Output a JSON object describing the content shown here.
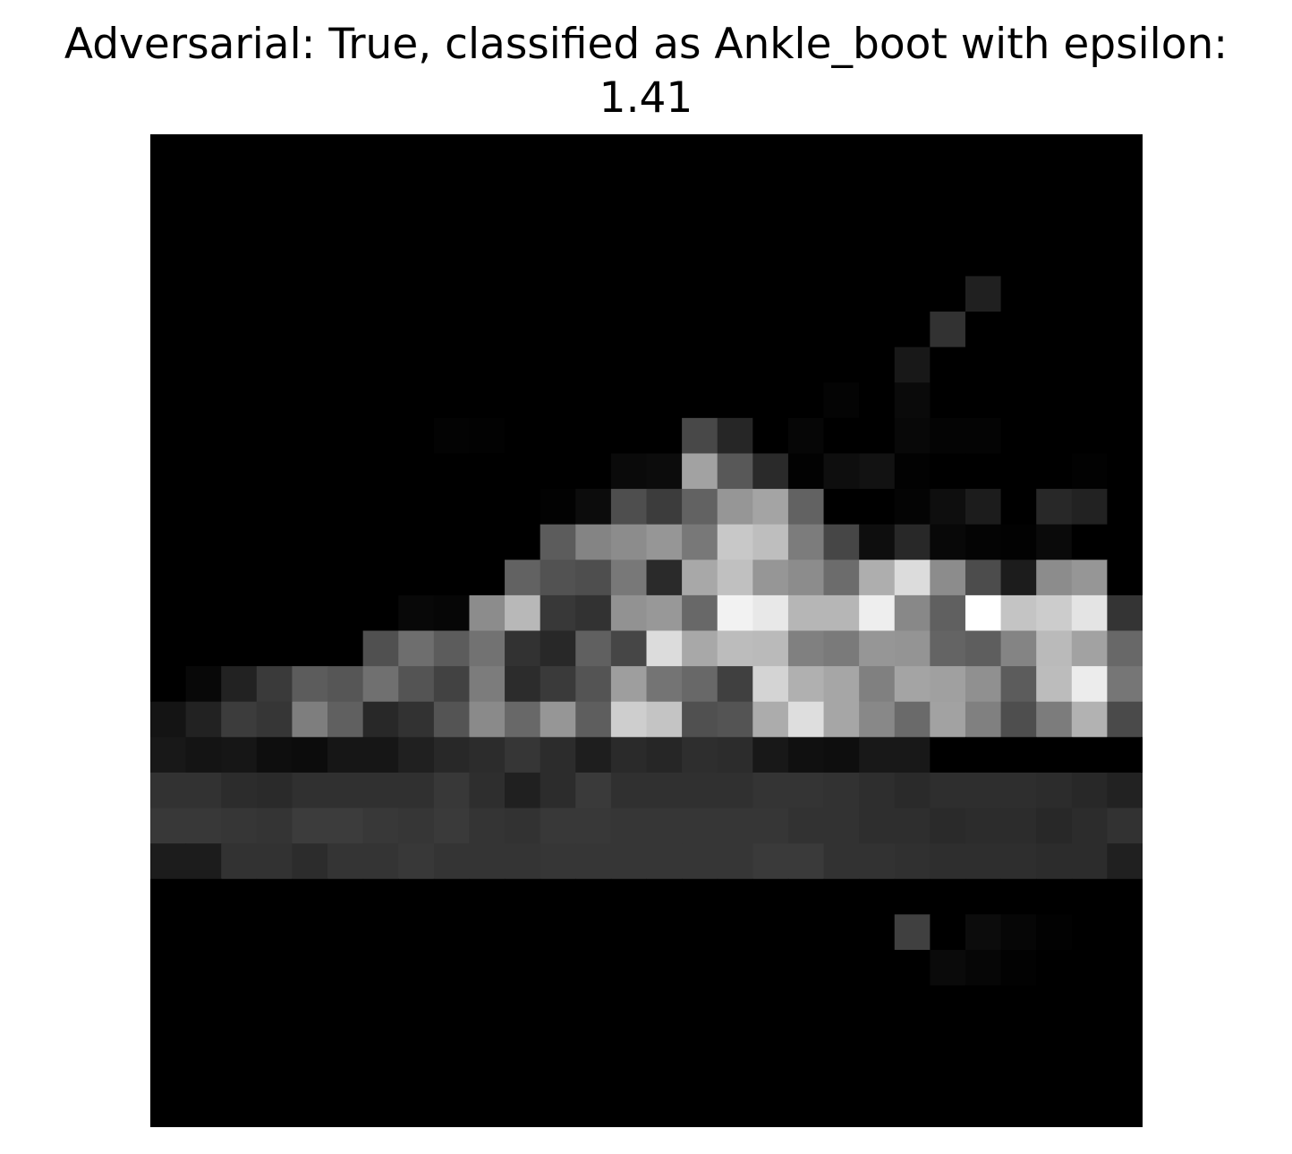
{
  "chart_data": {
    "type": "heatmap",
    "title_line_1": "Adversarial: True, classified as Ankle_boot with epsilon:",
    "title_line_2": "1.41",
    "colormap": "gray",
    "value_range": [
      0,
      255
    ],
    "rows": 28,
    "cols": 28,
    "axes_visible": false,
    "values": [
      [
        0,
        0,
        0,
        0,
        0,
        0,
        0,
        0,
        0,
        0,
        0,
        0,
        0,
        0,
        0,
        0,
        0,
        0,
        0,
        0,
        0,
        0,
        0,
        0,
        0,
        0,
        0,
        0
      ],
      [
        0,
        0,
        0,
        0,
        0,
        0,
        0,
        0,
        0,
        0,
        0,
        0,
        0,
        0,
        0,
        0,
        0,
        0,
        0,
        0,
        0,
        0,
        0,
        0,
        0,
        0,
        0,
        0
      ],
      [
        0,
        0,
        0,
        0,
        0,
        0,
        0,
        0,
        0,
        0,
        0,
        0,
        0,
        0,
        0,
        0,
        0,
        0,
        0,
        0,
        0,
        0,
        0,
        0,
        0,
        0,
        0,
        0
      ],
      [
        0,
        0,
        0,
        0,
        0,
        0,
        0,
        0,
        0,
        0,
        0,
        0,
        0,
        0,
        0,
        0,
        0,
        0,
        0,
        0,
        0,
        0,
        0,
        0,
        0,
        0,
        0,
        0
      ],
      [
        0,
        0,
        0,
        0,
        0,
        0,
        0,
        0,
        0,
        0,
        0,
        0,
        0,
        0,
        0,
        0,
        0,
        0,
        0,
        0,
        0,
        0,
        0,
        32,
        0,
        0,
        0,
        0
      ],
      [
        0,
        0,
        0,
        0,
        0,
        0,
        0,
        0,
        0,
        0,
        0,
        0,
        0,
        0,
        0,
        0,
        0,
        0,
        0,
        0,
        0,
        0,
        50,
        0,
        0,
        0,
        0,
        0
      ],
      [
        0,
        0,
        0,
        0,
        0,
        0,
        0,
        0,
        0,
        0,
        0,
        0,
        0,
        0,
        0,
        0,
        0,
        0,
        0,
        0,
        0,
        24,
        0,
        0,
        0,
        0,
        0,
        0
      ],
      [
        0,
        0,
        0,
        0,
        0,
        0,
        0,
        0,
        0,
        0,
        0,
        0,
        0,
        0,
        0,
        0,
        0,
        0,
        0,
        4,
        0,
        10,
        0,
        0,
        0,
        0,
        0,
        0
      ],
      [
        0,
        0,
        0,
        0,
        0,
        0,
        0,
        0,
        3,
        2,
        0,
        0,
        0,
        0,
        0,
        72,
        38,
        0,
        6,
        0,
        0,
        8,
        4,
        4,
        0,
        0,
        0,
        0
      ],
      [
        0,
        0,
        0,
        0,
        0,
        0,
        0,
        0,
        0,
        0,
        0,
        0,
        0,
        10,
        12,
        162,
        88,
        42,
        2,
        14,
        18,
        2,
        0,
        0,
        0,
        0,
        2,
        0
      ],
      [
        0,
        0,
        0,
        0,
        0,
        0,
        0,
        0,
        0,
        0,
        0,
        2,
        12,
        78,
        60,
        98,
        150,
        164,
        98,
        0,
        0,
        4,
        14,
        28,
        0,
        40,
        34,
        0
      ],
      [
        0,
        0,
        0,
        0,
        0,
        0,
        0,
        0,
        0,
        0,
        0,
        92,
        132,
        140,
        150,
        120,
        200,
        190,
        124,
        70,
        14,
        40,
        8,
        4,
        2,
        10,
        0,
        0
      ],
      [
        0,
        0,
        0,
        0,
        0,
        0,
        0,
        0,
        0,
        0,
        98,
        82,
        78,
        120,
        42,
        168,
        192,
        150,
        140,
        108,
        174,
        220,
        140,
        76,
        28,
        140,
        150,
        0
      ],
      [
        0,
        0,
        0,
        0,
        0,
        0,
        0,
        8,
        6,
        140,
        184,
        56,
        50,
        146,
        152,
        104,
        242,
        232,
        182,
        182,
        238,
        136,
        96,
        255,
        196,
        204,
        228,
        52
      ],
      [
        0,
        0,
        0,
        0,
        0,
        0,
        80,
        110,
        92,
        114,
        50,
        40,
        96,
        70,
        220,
        168,
        188,
        186,
        128,
        122,
        150,
        148,
        100,
        94,
        132,
        186,
        162,
        104
      ],
      [
        0,
        8,
        34,
        58,
        92,
        86,
        112,
        84,
        66,
        124,
        44,
        58,
        84,
        158,
        116,
        104,
        64,
        212,
        176,
        166,
        128,
        164,
        160,
        144,
        92,
        188,
        236,
        118
      ],
      [
        20,
        34,
        60,
        54,
        126,
        96,
        40,
        50,
        84,
        138,
        104,
        150,
        94,
        206,
        196,
        80,
        84,
        172,
        222,
        166,
        136,
        106,
        162,
        128,
        78,
        124,
        178,
        74
      ],
      [
        24,
        20,
        22,
        14,
        12,
        22,
        22,
        32,
        40,
        44,
        54,
        44,
        30,
        42,
        38,
        46,
        44,
        24,
        16,
        14,
        24,
        24,
        0,
        0,
        0,
        0,
        0,
        0
      ],
      [
        50,
        50,
        44,
        42,
        48,
        48,
        48,
        48,
        56,
        46,
        32,
        44,
        58,
        48,
        48,
        48,
        48,
        52,
        52,
        50,
        46,
        42,
        46,
        46,
        46,
        44,
        40,
        34
      ],
      [
        56,
        56,
        54,
        52,
        60,
        60,
        56,
        54,
        58,
        52,
        50,
        56,
        56,
        54,
        54,
        54,
        54,
        54,
        50,
        50,
        46,
        46,
        42,
        44,
        44,
        40,
        44,
        50
      ],
      [
        28,
        28,
        50,
        50,
        44,
        52,
        52,
        56,
        52,
        52,
        52,
        54,
        54,
        54,
        54,
        54,
        54,
        58,
        58,
        50,
        50,
        48,
        46,
        46,
        46,
        44,
        44,
        32
      ],
      [
        0,
        0,
        0,
        0,
        0,
        0,
        0,
        0,
        0,
        0,
        0,
        0,
        0,
        0,
        0,
        0,
        0,
        0,
        0,
        0,
        0,
        0,
        0,
        0,
        0,
        0,
        0,
        0
      ],
      [
        0,
        0,
        0,
        0,
        0,
        0,
        0,
        0,
        0,
        0,
        0,
        0,
        0,
        0,
        0,
        0,
        0,
        0,
        0,
        0,
        0,
        64,
        0,
        12,
        6,
        2,
        0,
        0
      ],
      [
        0,
        0,
        0,
        0,
        0,
        0,
        0,
        0,
        0,
        0,
        0,
        0,
        0,
        0,
        0,
        0,
        0,
        0,
        0,
        0,
        0,
        0,
        10,
        6,
        2,
        0,
        0,
        0
      ],
      [
        0,
        0,
        0,
        0,
        0,
        0,
        0,
        0,
        0,
        0,
        0,
        0,
        0,
        0,
        0,
        0,
        0,
        0,
        0,
        0,
        0,
        0,
        0,
        0,
        0,
        0,
        0,
        0
      ],
      [
        0,
        0,
        0,
        0,
        0,
        0,
        0,
        0,
        0,
        0,
        0,
        0,
        0,
        0,
        0,
        0,
        0,
        0,
        0,
        0,
        0,
        0,
        0,
        0,
        0,
        0,
        0,
        0
      ],
      [
        0,
        0,
        0,
        0,
        0,
        0,
        0,
        0,
        0,
        0,
        0,
        0,
        0,
        0,
        0,
        0,
        0,
        0,
        0,
        0,
        0,
        0,
        0,
        0,
        0,
        0,
        0,
        0
      ],
      [
        0,
        0,
        0,
        0,
        0,
        0,
        0,
        0,
        0,
        0,
        0,
        0,
        0,
        0,
        0,
        0,
        0,
        0,
        0,
        0,
        0,
        0,
        0,
        0,
        0,
        0,
        0,
        0
      ]
    ]
  }
}
